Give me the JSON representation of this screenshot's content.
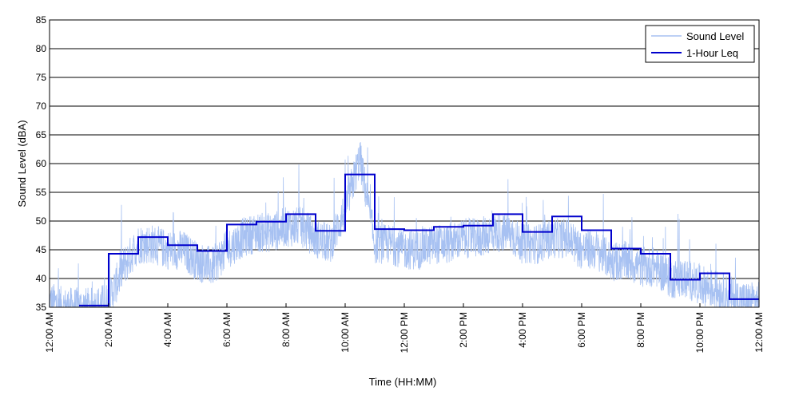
{
  "chart_data": {
    "type": "line",
    "title": "",
    "xlabel": "Time (HH:MM)",
    "ylabel": "Sound Level (dBA)",
    "xlim": [
      0,
      24
    ],
    "ylim": [
      35,
      85
    ],
    "yticks": [
      35,
      40,
      45,
      50,
      55,
      60,
      65,
      70,
      75,
      80,
      85
    ],
    "xticks": [
      {
        "x": 0,
        "label": "12:00 AM"
      },
      {
        "x": 2,
        "label": "2:00 AM"
      },
      {
        "x": 4,
        "label": "4:00 AM"
      },
      {
        "x": 6,
        "label": "6:00 AM"
      },
      {
        "x": 8,
        "label": "8:00 AM"
      },
      {
        "x": 10,
        "label": "10:00 AM"
      },
      {
        "x": 12,
        "label": "12:00 PM"
      },
      {
        "x": 14,
        "label": "2:00 PM"
      },
      {
        "x": 16,
        "label": "4:00 PM"
      },
      {
        "x": 18,
        "label": "6:00 PM"
      },
      {
        "x": 20,
        "label": "8:00 PM"
      },
      {
        "x": 22,
        "label": "10:00 PM"
      },
      {
        "x": 24,
        "label": "12:00 AM"
      }
    ],
    "grid": "horizontal",
    "legend_position": "top-right",
    "series": [
      {
        "name": "Sound Level",
        "color": "#a7c1f2",
        "style": "noisy",
        "x": [
          0,
          0.5,
          1,
          1.5,
          2,
          2.5,
          3,
          3.5,
          4,
          4.5,
          5,
          5.5,
          6,
          6.5,
          7,
          7.5,
          8,
          8.5,
          9,
          9.5,
          10,
          10.5,
          11,
          11.5,
          12,
          12.5,
          13,
          13.5,
          14,
          14.5,
          15,
          15.5,
          16,
          16.5,
          17,
          17.5,
          18,
          18.5,
          19,
          19.5,
          20,
          20.5,
          21,
          21.5,
          22,
          22.5,
          23,
          23.5,
          24
        ],
        "y": [
          36,
          35,
          35,
          35,
          36,
          42,
          46,
          46,
          45,
          45,
          43,
          42,
          45,
          47,
          48,
          48,
          49,
          49,
          47,
          46,
          52,
          61,
          46,
          46,
          45,
          45,
          46,
          46,
          47,
          47,
          48,
          48,
          46,
          46,
          47,
          47,
          45,
          45,
          43,
          43,
          42,
          42,
          40,
          40,
          39,
          38,
          37,
          36,
          36
        ]
      },
      {
        "name": "1-Hour Leq",
        "color": "#0000cc",
        "style": "step",
        "x": [
          1,
          2,
          3,
          4,
          5,
          6,
          7,
          8,
          9,
          10,
          11,
          12,
          13,
          14,
          15,
          16,
          17,
          18,
          19,
          20,
          21,
          22,
          23
        ],
        "y": [
          35.3,
          44.3,
          47.2,
          45.8,
          44.8,
          49.4,
          49.9,
          51.2,
          48.3,
          58.1,
          48.6,
          48.4,
          49.0,
          49.2,
          51.2,
          48.1,
          50.8,
          48.4,
          45.2,
          44.3,
          39.8,
          40.9,
          36.4
        ]
      }
    ]
  }
}
